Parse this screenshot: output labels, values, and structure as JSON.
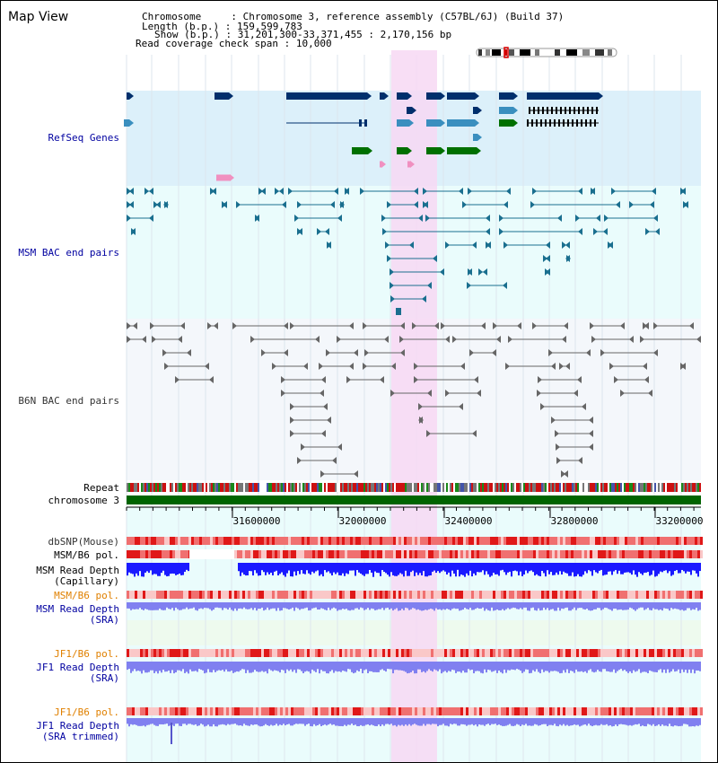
{
  "page": {
    "title": "Map View"
  },
  "info": {
    "chromosome_label": "Chromosome",
    "chromosome_value": "Chromosome 3, reference assembly (C57BL/6J) (Build 37)",
    "length_label": "Length (b.p.)",
    "length_value": "159,599,783",
    "show_label": "Show (b.p.)",
    "show_value": "31,201,300-33,371,455 : 2,170,156 bp",
    "span_label": "Read coverage check span",
    "span_value": "10,000"
  },
  "tracks": {
    "refseq": "RefSeq Genes",
    "msm_bac": "MSM BAC end pairs",
    "b6n_bac": "B6N BAC end pairs",
    "repeat": "Repeat",
    "chromosome": "chromosome 3",
    "dbsnp": "dbSNP(Mouse)",
    "msm_b6_pol_1": "MSM/B6 pol.",
    "msm_read_depth_cap_1": "MSM Read Depth",
    "msm_read_depth_cap_2": "(Capillary)",
    "msm_b6_pol_2": "MSM/B6 pol.",
    "msm_read_depth_sra_1": "MSM Read Depth",
    "msm_read_depth_sra_2": "(SRA)",
    "jf1_b6_pol_1": "JF1/B6 pol.",
    "jf1_read_depth_sra_1": "JF1 Read Depth",
    "jf1_read_depth_sra_2": "(SRA)",
    "jf1_b6_pol_2": "JF1/B6 pol.",
    "jf1_read_depth_trim_1": "JF1 Read Depth",
    "jf1_read_depth_trim_2": "(SRA trimmed)"
  },
  "ruler": {
    "ticks": [
      "31600000",
      "32000000",
      "32400000",
      "32800000",
      "33200000"
    ]
  },
  "colors": {
    "refseq_bg": "#dcf0fa",
    "bac_bg": "#eafcfc",
    "b6n_bg": "#f4f7fb",
    "highlight": "#f7d8f3",
    "chromosome_bar": "#006400",
    "gene_dark": "#002f6c",
    "gene_teal": "#3a8fbf",
    "gene_green": "#007000",
    "bac_msm": "#1a6f8f",
    "bac_b6n": "#666666",
    "depth_dark": "#1a1aff",
    "depth_light": "#8080f0",
    "pol_red": "#ee3030"
  }
}
